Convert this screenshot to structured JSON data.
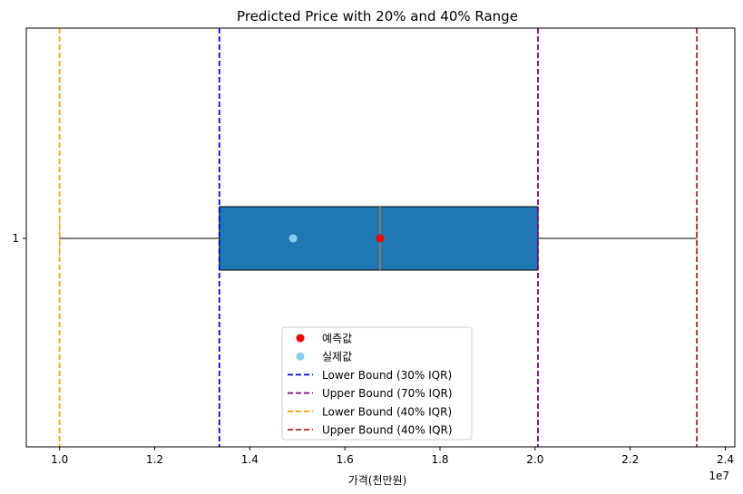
{
  "chart_data": {
    "type": "boxplot",
    "title": "Predicted Price with 20% and 40% Range",
    "xlabel": "가격(천만원)",
    "ylabel": "",
    "x_offset_label": "1e7",
    "x_scale_exponent": 7,
    "xlim": [
      0.93,
      2.42
    ],
    "x_ticks": [
      1.0,
      1.2,
      1.4,
      1.6,
      1.8,
      2.0,
      2.2,
      2.4
    ],
    "x_tick_labels": [
      "1.0",
      "1.2",
      "1.4",
      "1.6",
      "1.8",
      "2.0",
      "2.2",
      "2.4"
    ],
    "y_tick_labels": [
      "1"
    ],
    "box": {
      "whisker_low": 1.0,
      "q1": 1.336,
      "median": 1.674,
      "q3": 2.006,
      "whisker_high": 2.34,
      "fill": "#1f77b4",
      "median_color": "#ff7f0e"
    },
    "points": [
      {
        "name": "예측값",
        "x": 1.674,
        "color": "#ff0000"
      },
      {
        "name": "실제값",
        "x": 1.491,
        "color": "#87ceeb"
      }
    ],
    "vlines": [
      {
        "name": "Lower Bound (30% IQR)",
        "x": 1.336,
        "color": "#0000ff"
      },
      {
        "name": "Upper Bound (70% IQR)",
        "x": 2.006,
        "color": "#800080"
      },
      {
        "name": "Lower Bound (40% IQR)",
        "x": 1.0,
        "color": "#ffa500"
      },
      {
        "name": "Upper Bound (40% IQR)",
        "x": 2.34,
        "color": "#b22222"
      }
    ],
    "legend": {
      "placement": "lower center",
      "entries": [
        {
          "label": "예측값",
          "kind": "dot",
          "color": "#ff0000"
        },
        {
          "label": "실제값",
          "kind": "dot",
          "color": "#87ceeb"
        },
        {
          "label": "Lower Bound (30% IQR)",
          "kind": "dash",
          "color": "#0000ff"
        },
        {
          "label": "Upper Bound (70% IQR)",
          "kind": "dash",
          "color": "#800080"
        },
        {
          "label": "Lower Bound (40% IQR)",
          "kind": "dash",
          "color": "#ffa500"
        },
        {
          "label": "Upper Bound (40% IQR)",
          "kind": "dash",
          "color": "#b22222"
        }
      ]
    },
    "grid": false
  }
}
